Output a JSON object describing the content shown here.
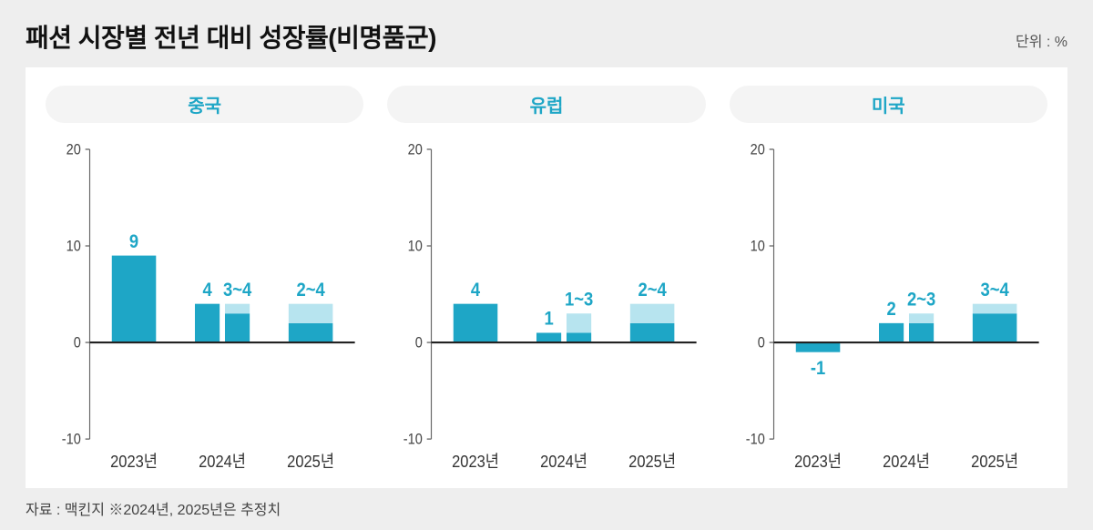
{
  "title": "패션 시장별 전년 대비 성장률(비명품군)",
  "unit": "단위 : %",
  "footer": "자료 : 맥킨지 ※2024년, 2025년은 추정치",
  "chart": {
    "type": "bar",
    "ylim": [
      -10,
      20
    ],
    "yticks": [
      -10,
      0,
      10,
      20
    ],
    "x_categories": [
      "2023년",
      "2024년",
      "2025년"
    ],
    "colors": {
      "bar_solid": "#1ea6c6",
      "bar_light": "#b7e4ef",
      "label": "#1ea6c6",
      "axis": "#666666",
      "zero": "#222222",
      "bg_panel": "#ffffff",
      "bg_page": "#eeeeee",
      "pill_bg": "#f4f4f4"
    },
    "fontsize": {
      "title": 28,
      "panel_title": 20,
      "tick": 15,
      "xlabel": 17,
      "value": 19
    },
    "panels": [
      {
        "name": "중국",
        "groups": [
          {
            "bars": [
              {
                "label": "9",
                "low": 9,
                "high": 9
              }
            ]
          },
          {
            "bars": [
              {
                "label": "4",
                "low": 4,
                "high": 4
              },
              {
                "label": "3~4",
                "low": 3,
                "high": 4
              }
            ]
          },
          {
            "bars": [
              {
                "label": "2~4",
                "low": 2,
                "high": 4
              }
            ]
          }
        ]
      },
      {
        "name": "유럽",
        "groups": [
          {
            "bars": [
              {
                "label": "4",
                "low": 4,
                "high": 4
              }
            ]
          },
          {
            "bars": [
              {
                "label": "1",
                "low": 1,
                "high": 1
              },
              {
                "label": "1~3",
                "low": 1,
                "high": 3
              }
            ]
          },
          {
            "bars": [
              {
                "label": "2~4",
                "low": 2,
                "high": 4
              }
            ]
          }
        ]
      },
      {
        "name": "미국",
        "groups": [
          {
            "bars": [
              {
                "label": "-1",
                "low": -1,
                "high": -1
              }
            ]
          },
          {
            "bars": [
              {
                "label": "2",
                "low": 2,
                "high": 2
              },
              {
                "label": "2~3",
                "low": 2,
                "high": 3
              }
            ]
          },
          {
            "bars": [
              {
                "label": "3~4",
                "low": 3,
                "high": 4
              }
            ]
          }
        ]
      }
    ]
  }
}
